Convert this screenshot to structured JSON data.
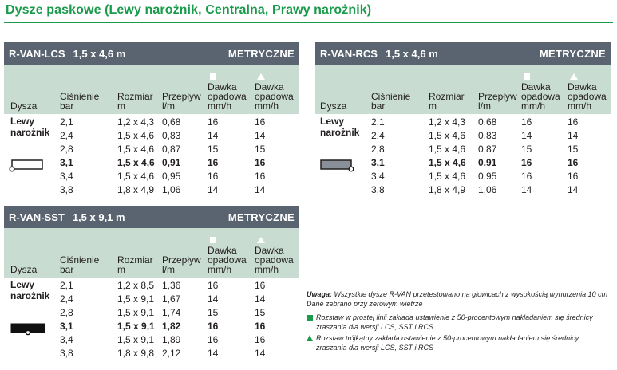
{
  "title": "Dysze paskowe (Lewy narożnik, Centralna, Prawy narożnik)",
  "columns": {
    "dysza": "Dysza",
    "cisnienie": [
      "Ciśnienie",
      "bar"
    ],
    "rozmiar": [
      "Rozmiar",
      "m"
    ],
    "przeplyw": [
      "Przepływ",
      "l/m"
    ],
    "dawka_sq": [
      "Dawka",
      "opadowa",
      "mm/h"
    ],
    "dawka_tri": [
      "Dawka",
      "opadowa",
      "mm/h"
    ]
  },
  "panels": [
    {
      "id": "lcs",
      "model": "R-VAN-LCS",
      "dims": "1,5 x 4,6 m",
      "unit": "METRYCZNE",
      "nozzle": [
        "Lewy",
        "narożnik"
      ],
      "icon": "left-strip-nozzle-icon",
      "rows": [
        [
          "2,1",
          "1,2 x 4,3",
          "0,68",
          "16",
          "16"
        ],
        [
          "2,4",
          "1,5 x 4,6",
          "0,83",
          "14",
          "14"
        ],
        [
          "2,8",
          "1,5 x 4,6",
          "0,87",
          "15",
          "15"
        ],
        [
          "3,1",
          "1,5 x 4,6",
          "0,91",
          "16",
          "16"
        ],
        [
          "3,4",
          "1,5 x 4,6",
          "0,95",
          "16",
          "16"
        ],
        [
          "3,8",
          "1,8 x 4,9",
          "1,06",
          "14",
          "14"
        ]
      ],
      "bold_row": 3
    },
    {
      "id": "rcs",
      "model": "R-VAN-RCS",
      "dims": "1,5 x 4,6 m",
      "unit": "METRYCZNE",
      "nozzle": [
        "Lewy",
        "narożnik"
      ],
      "icon": "right-strip-nozzle-icon",
      "rows": [
        [
          "2,1",
          "1,2 x 4,3",
          "0,68",
          "16",
          "16"
        ],
        [
          "2,4",
          "1,5 x 4,6",
          "0,83",
          "14",
          "14"
        ],
        [
          "2,8",
          "1,5 x 4,6",
          "0,87",
          "15",
          "15"
        ],
        [
          "3,1",
          "1,5 x 4,6",
          "0,91",
          "16",
          "16"
        ],
        [
          "3,4",
          "1,5 x 4,6",
          "0,95",
          "16",
          "16"
        ],
        [
          "3,8",
          "1,8 x 4,9",
          "1,06",
          "14",
          "14"
        ]
      ],
      "bold_row": 3
    },
    {
      "id": "sst",
      "model": "R-VAN-SST",
      "dims": "1,5 x 9,1 m",
      "unit": "METRYCZNE",
      "nozzle": [
        "Lewy",
        "narożnik"
      ],
      "icon": "side-strip-nozzle-icon",
      "rows": [
        [
          "2,1",
          "1,2 x 8,5",
          "1,36",
          "16",
          "16"
        ],
        [
          "2,4",
          "1,5 x 9,1",
          "1,67",
          "14",
          "14"
        ],
        [
          "2,8",
          "1,5 x 9,1",
          "1,74",
          "15",
          "15"
        ],
        [
          "3,1",
          "1,5 x 9,1",
          "1,82",
          "16",
          "16"
        ],
        [
          "3,4",
          "1,5 x 9,1",
          "1,89",
          "16",
          "16"
        ],
        [
          "3,8",
          "1,8 x 9,8",
          "2,12",
          "14",
          "14"
        ]
      ],
      "bold_row": 3
    }
  ],
  "notes": {
    "uwaga_label": "Uwaga:",
    "uwaga_text": "Wszystkie dysze R-VAN przetestowano na głowicach z wysokością wynurzenia 10 cm",
    "uwaga_text2": "Dane zebrano przy zerowym wietrze",
    "square_note": [
      "Rozstaw w prostej linii zakłada ustawienie z 50-procentowym nakładaniem się średnicy",
      "zraszania dla wersji LCS, SST i RCS"
    ],
    "triangle_note": [
      "Rozstaw trójkątny zakłada ustawienie z 50-procentowym nakładaniem się średnicy",
      "zraszania dla wersji LCS, SST i RCS"
    ]
  },
  "colors": {
    "accent_green": "#1a9a4b",
    "header_gray": "#5a6470",
    "head_band": "#c8dcd2"
  }
}
